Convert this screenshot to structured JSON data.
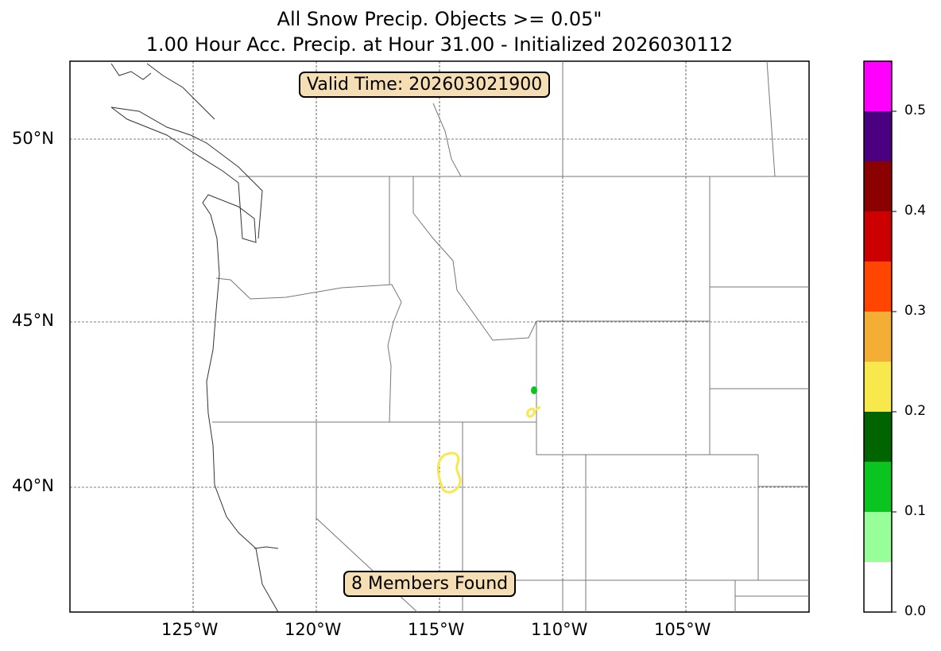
{
  "title_line1": "All Snow Precip. Objects >= 0.05\"",
  "title_line2": "1.00 Hour Acc. Precip. at Hour 31.00 - Initialized 2026030112",
  "valid_time": "Valid Time: 202603021900",
  "members_found": "8 Members Found",
  "lon_ticks": [
    "125°W",
    "120°W",
    "115°W",
    "110°W",
    "105°W"
  ],
  "lat_ticks": [
    "50°N",
    "45°N",
    "40°N"
  ],
  "colorbar": {
    "ticks": [
      "0.0",
      "0.1",
      "0.2",
      "0.3",
      "0.4",
      "0.5"
    ],
    "bounds": [
      0.0,
      0.05,
      0.1,
      0.15,
      0.2,
      0.25,
      0.3,
      0.35,
      0.4,
      0.45,
      0.5,
      0.55
    ],
    "colors": [
      "#ffffff",
      "#98ff98",
      "#0ac41f",
      "#006400",
      "#f9e84c",
      "#f4ad35",
      "#ff4500",
      "#cc0000",
      "#8b0000",
      "#4b0082",
      "#ff00ff"
    ]
  },
  "objects": [
    {
      "region": "central Nevada",
      "color": "#f9e84c",
      "style": "outline"
    },
    {
      "region": "southeast Idaho",
      "color": "#f9e84c",
      "style": "outline"
    },
    {
      "region": "southeast Idaho",
      "color": "#0ac41f",
      "style": "filled"
    }
  ]
}
